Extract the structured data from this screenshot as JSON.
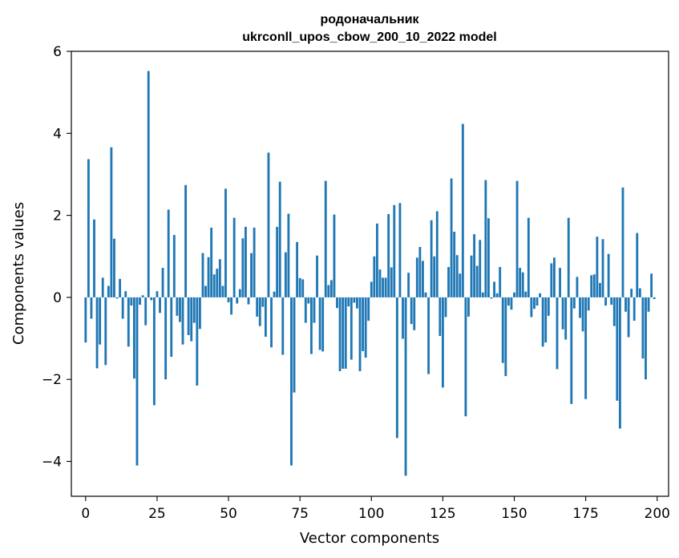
{
  "chart_data": {
    "type": "bar",
    "title": "родоначальник",
    "subtitle": "ukrconll_upos_cbow_200_10_2022 model",
    "xlabel": "Vector components",
    "ylabel": "Components values",
    "xlim": [
      -5,
      204
    ],
    "ylim": [
      -4.85,
      6.0
    ],
    "xticks": [
      0,
      25,
      50,
      75,
      100,
      125,
      150,
      175,
      200
    ],
    "xtick_labels": [
      "0",
      "25",
      "50",
      "75",
      "100",
      "125",
      "150",
      "175",
      "200"
    ],
    "yticks": [
      -4,
      -2,
      0,
      2,
      4,
      6
    ],
    "ytick_labels": [
      "−4",
      "−2",
      "0",
      "2",
      "4",
      "6"
    ],
    "grid": false,
    "color": "#1f77b4",
    "x": [
      0,
      1,
      2,
      3,
      4,
      5,
      6,
      7,
      8,
      9,
      10,
      11,
      12,
      13,
      14,
      15,
      16,
      17,
      18,
      19,
      20,
      21,
      22,
      23,
      24,
      25,
      26,
      27,
      28,
      29,
      30,
      31,
      32,
      33,
      34,
      35,
      36,
      37,
      38,
      39,
      40,
      41,
      42,
      43,
      44,
      45,
      46,
      47,
      48,
      49,
      50,
      51,
      52,
      53,
      54,
      55,
      56,
      57,
      58,
      59,
      60,
      61,
      62,
      63,
      64,
      65,
      66,
      67,
      68,
      69,
      70,
      71,
      72,
      73,
      74,
      75,
      76,
      77,
      78,
      79,
      80,
      81,
      82,
      83,
      84,
      85,
      86,
      87,
      88,
      89,
      90,
      91,
      92,
      93,
      94,
      95,
      96,
      97,
      98,
      99,
      100,
      101,
      102,
      103,
      104,
      105,
      106,
      107,
      108,
      109,
      110,
      111,
      112,
      113,
      114,
      115,
      116,
      117,
      118,
      119,
      120,
      121,
      122,
      123,
      124,
      125,
      126,
      127,
      128,
      129,
      130,
      131,
      132,
      133,
      134,
      135,
      136,
      137,
      138,
      139,
      140,
      141,
      142,
      143,
      144,
      145,
      146,
      147,
      148,
      149,
      150,
      151,
      152,
      153,
      154,
      155,
      156,
      157,
      158,
      159,
      160,
      161,
      162,
      163,
      164,
      165,
      166,
      167,
      168,
      169,
      170,
      171,
      172,
      173,
      174,
      175,
      176,
      177,
      178,
      179,
      180,
      181,
      182,
      183,
      184,
      185,
      186,
      187,
      188,
      189,
      190,
      191,
      192,
      193,
      194,
      195,
      196,
      197,
      198,
      199
    ],
    "values": [
      -1.1,
      3.37,
      -0.52,
      1.9,
      -1.73,
      -1.15,
      0.48,
      -1.65,
      0.28,
      3.66,
      1.43,
      -0.03,
      0.45,
      -0.52,
      0.15,
      -1.2,
      -0.2,
      -1.98,
      -4.1,
      -0.18,
      0.05,
      -0.68,
      5.52,
      -0.07,
      -2.63,
      0.15,
      -0.38,
      0.72,
      -2.0,
      2.14,
      -1.45,
      1.52,
      -0.45,
      -0.6,
      -1.15,
      2.74,
      -0.92,
      -1.07,
      -0.62,
      -2.15,
      -0.77,
      1.08,
      0.28,
      0.98,
      1.7,
      0.56,
      0.7,
      0.93,
      0.28,
      2.65,
      -0.12,
      -0.42,
      1.94,
      -0.15,
      0.2,
      1.44,
      1.72,
      -0.17,
      1.08,
      1.7,
      -0.47,
      -0.7,
      -0.23,
      -0.96,
      3.53,
      -1.22,
      0.14,
      1.72,
      2.82,
      -1.4,
      1.1,
      2.04,
      -4.1,
      -2.32,
      1.35,
      0.47,
      0.44,
      -0.62,
      -0.15,
      -1.38,
      -0.62,
      1.02,
      -1.28,
      -1.32,
      2.84,
      0.3,
      0.42,
      2.02,
      -0.26,
      -1.8,
      -1.74,
      -1.74,
      -0.22,
      -1.52,
      -0.13,
      -0.27,
      -1.8,
      -1.31,
      -1.47,
      -0.57,
      0.38,
      1.0,
      1.8,
      0.68,
      0.48,
      0.48,
      2.03,
      0.73,
      2.25,
      -3.43,
      2.3,
      -1.01,
      -4.35,
      0.6,
      -0.65,
      -0.8,
      0.97,
      1.23,
      0.89,
      0.12,
      -1.87,
      1.88,
      1.0,
      2.1,
      -0.94,
      -2.2,
      -0.48,
      0.74,
      2.9,
      1.6,
      1.03,
      0.58,
      4.23,
      -2.9,
      -0.47,
      1.02,
      1.54,
      0.77,
      1.4,
      0.12,
      2.86,
      1.93,
      -0.03,
      0.38,
      0.1,
      0.74,
      -1.6,
      -1.92,
      -0.2,
      -0.3,
      0.12,
      2.84,
      0.72,
      0.61,
      0.14,
      1.94,
      -0.48,
      -0.28,
      -0.2,
      0.1,
      -1.2,
      -1.1,
      -0.45,
      0.83,
      0.97,
      -1.75,
      0.72,
      -0.78,
      -1.03,
      1.94,
      -2.6,
      -0.27,
      0.5,
      -0.5,
      -0.83,
      -2.48,
      -0.32,
      0.54,
      0.56,
      1.48,
      0.35,
      1.42,
      -0.2,
      1.06,
      -0.18,
      -0.7,
      -2.52,
      -3.2,
      2.68,
      -0.35,
      -0.97,
      0.21,
      -0.57,
      1.57,
      0.22,
      -1.49,
      -2.0,
      -0.35,
      0.58,
      -0.04
    ]
  }
}
